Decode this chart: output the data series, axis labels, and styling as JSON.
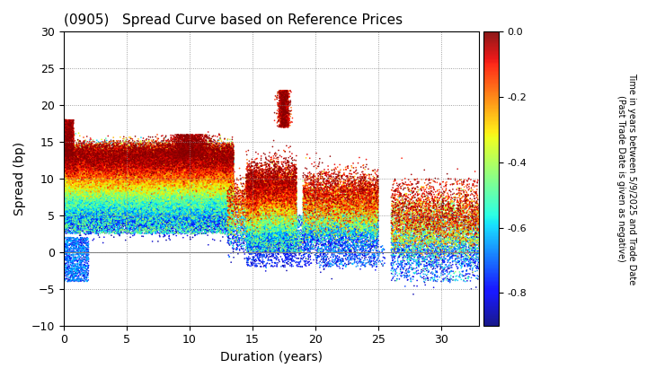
{
  "title": "(0905)   Spread Curve based on Reference Prices",
  "xlabel": "Duration (years)",
  "ylabel": "Spread (bp)",
  "xlim": [
    0,
    33
  ],
  "ylim": [
    -10,
    30
  ],
  "xticks": [
    0,
    5,
    10,
    15,
    20,
    25,
    30
  ],
  "yticks": [
    -10,
    -5,
    0,
    5,
    10,
    15,
    20,
    25,
    30
  ],
  "colorbar_label_line1": "Time in years between 5/9/2025 and Trade Date",
  "colorbar_label_line2": "(Past Trade Date is given as negative)",
  "cbar_ticks": [
    0.0,
    -0.2,
    -0.4,
    -0.6,
    -0.8
  ],
  "cmap": "jet",
  "vmin": -0.9,
  "vmax": 0.0,
  "background_color": "#ffffff",
  "grid_color": "#888888",
  "seed": 12345
}
